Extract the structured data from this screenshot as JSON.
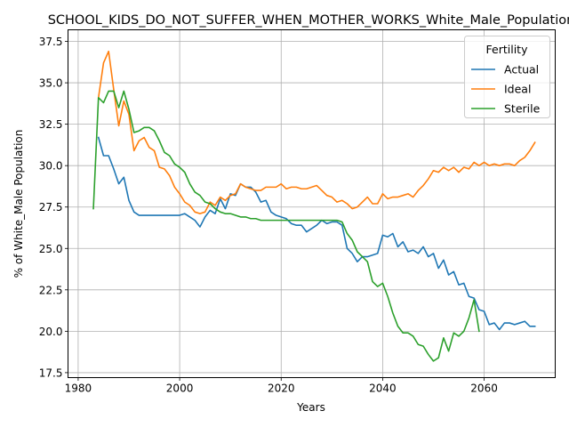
{
  "colors": {
    "Actual": "#1f77b4",
    "Ideal": "#ff7f0e",
    "Sterile": "#2ca02c",
    "grid": "#b0b0b0"
  },
  "chart_data": {
    "type": "line",
    "title": "SCHOOL_KIDS_DO_NOT_SUFFER_WHEN_MOTHER_WORKS_White_Male_Population",
    "xlabel": "Years",
    "ylabel": "% of White_Male Population",
    "xlim": [
      1978,
      2074
    ],
    "ylim": [
      17.2,
      38.2
    ],
    "xticks": [
      1980,
      2000,
      2020,
      2040,
      2060
    ],
    "yticks": [
      17.5,
      20.0,
      22.5,
      25.0,
      27.5,
      30.0,
      32.5,
      35.0,
      37.5
    ],
    "xtick_labels": [
      "1980",
      "2000",
      "2020",
      "2040",
      "2060"
    ],
    "ytick_labels": [
      "17.5",
      "20.0",
      "22.5",
      "25.0",
      "27.5",
      "30.0",
      "32.5",
      "35.0",
      "37.5"
    ],
    "grid": true,
    "legend": {
      "title": "Fertility",
      "position": "top-right"
    },
    "series": [
      {
        "name": "Actual",
        "x": [
          1984,
          1985,
          1986,
          1987,
          1988,
          1989,
          1990,
          1991,
          1992,
          1993,
          1994,
          1995,
          1996,
          1997,
          1998,
          1999,
          2000,
          2001,
          2002,
          2003,
          2004,
          2005,
          2006,
          2007,
          2008,
          2009,
          2010,
          2011,
          2012,
          2013,
          2014,
          2015,
          2016,
          2017,
          2018,
          2019,
          2020,
          2021,
          2022,
          2023,
          2024,
          2025,
          2026,
          2027,
          2028,
          2029,
          2030,
          2031,
          2032,
          2033,
          2034,
          2035,
          2036,
          2037,
          2038,
          2039,
          2040,
          2041,
          2042,
          2043,
          2044,
          2045,
          2046,
          2047,
          2048,
          2049,
          2050,
          2051,
          2052,
          2053,
          2054,
          2055,
          2056,
          2057,
          2058,
          2059,
          2060,
          2061,
          2062,
          2063,
          2064,
          2065,
          2066,
          2067,
          2068,
          2069,
          2070
        ],
        "values": [
          31.7,
          30.6,
          30.6,
          29.8,
          28.9,
          29.3,
          27.9,
          27.2,
          27.0,
          27.0,
          27.0,
          27.0,
          27.0,
          27.0,
          27.0,
          27.0,
          27.0,
          27.1,
          26.9,
          26.7,
          26.3,
          26.9,
          27.3,
          27.1,
          28.0,
          27.4,
          28.3,
          28.2,
          28.9,
          28.7,
          28.7,
          28.4,
          27.8,
          27.9,
          27.2,
          27.0,
          26.9,
          26.8,
          26.5,
          26.4,
          26.4,
          26.0,
          26.2,
          26.4,
          26.7,
          26.5,
          26.6,
          26.6,
          26.4,
          25.0,
          24.7,
          24.2,
          24.5,
          24.5,
          24.6,
          24.7,
          25.8,
          25.7,
          25.9,
          25.1,
          25.4,
          24.8,
          24.9,
          24.7,
          25.1,
          24.5,
          24.7,
          23.8,
          24.3,
          23.4,
          23.6,
          22.8,
          22.9,
          22.1,
          22.0,
          21.3,
          21.2,
          20.4,
          20.5,
          20.1,
          20.5,
          20.5,
          20.4,
          20.5,
          20.6,
          20.3,
          20.3
        ]
      },
      {
        "name": "Ideal",
        "x": [
          1984,
          1985,
          1986,
          1987,
          1988,
          1989,
          1990,
          1991,
          1992,
          1993,
          1994,
          1995,
          1996,
          1997,
          1998,
          1999,
          2000,
          2001,
          2002,
          2003,
          2004,
          2005,
          2006,
          2007,
          2008,
          2009,
          2010,
          2011,
          2012,
          2013,
          2014,
          2015,
          2016,
          2017,
          2018,
          2019,
          2020,
          2021,
          2022,
          2023,
          2024,
          2025,
          2026,
          2027,
          2028,
          2029,
          2030,
          2031,
          2032,
          2033,
          2034,
          2035,
          2036,
          2037,
          2038,
          2039,
          2040,
          2041,
          2042,
          2043,
          2044,
          2045,
          2046,
          2047,
          2048,
          2049,
          2050,
          2051,
          2052,
          2053,
          2054,
          2055,
          2056,
          2057,
          2058,
          2059,
          2060,
          2061,
          2062,
          2063,
          2064,
          2065,
          2066,
          2067,
          2068,
          2069,
          2070
        ],
        "values": [
          34.1,
          36.2,
          36.9,
          34.6,
          32.4,
          33.9,
          33.1,
          30.9,
          31.5,
          31.7,
          31.1,
          30.9,
          29.9,
          29.8,
          29.4,
          28.7,
          28.3,
          27.8,
          27.6,
          27.2,
          27.1,
          27.2,
          27.8,
          27.6,
          28.1,
          27.9,
          28.2,
          28.3,
          28.9,
          28.7,
          28.6,
          28.5,
          28.5,
          28.7,
          28.7,
          28.7,
          28.9,
          28.6,
          28.7,
          28.7,
          28.6,
          28.6,
          28.7,
          28.8,
          28.5,
          28.2,
          28.1,
          27.8,
          27.9,
          27.7,
          27.4,
          27.5,
          27.8,
          28.1,
          27.7,
          27.7,
          28.3,
          28.0,
          28.1,
          28.1,
          28.2,
          28.3,
          28.1,
          28.5,
          28.8,
          29.2,
          29.7,
          29.6,
          29.9,
          29.7,
          29.9,
          29.6,
          29.9,
          29.8,
          30.2,
          30.0,
          30.2,
          30.0,
          30.1,
          30.0,
          30.1,
          30.1,
          30.0,
          30.3,
          30.5,
          30.9,
          31.4
        ]
      },
      {
        "name": "Sterile",
        "x": [
          1983,
          1984,
          1985,
          1986,
          1987,
          1988,
          1989,
          1990,
          1991,
          1992,
          1993,
          1994,
          1995,
          1996,
          1997,
          1998,
          1999,
          2000,
          2001,
          2002,
          2003,
          2004,
          2005,
          2006,
          2007,
          2008,
          2009,
          2010,
          2011,
          2012,
          2013,
          2014,
          2015,
          2016,
          2017,
          2018,
          2019,
          2020,
          2021,
          2022,
          2023,
          2024,
          2025,
          2026,
          2027,
          2028,
          2029,
          2030,
          2031,
          2032,
          2033,
          2034,
          2035,
          2036,
          2037,
          2038,
          2039,
          2040,
          2041,
          2042,
          2043,
          2044,
          2045,
          2046,
          2047,
          2048,
          2049,
          2050,
          2051,
          2052,
          2053,
          2054,
          2055,
          2056,
          2057,
          2058,
          2059
        ],
        "values": [
          27.4,
          34.1,
          33.8,
          34.5,
          34.5,
          33.5,
          34.5,
          33.4,
          32.0,
          32.1,
          32.3,
          32.3,
          32.1,
          31.5,
          30.8,
          30.6,
          30.1,
          29.9,
          29.6,
          28.9,
          28.4,
          28.2,
          27.8,
          27.7,
          27.4,
          27.2,
          27.1,
          27.1,
          27.0,
          26.9,
          26.9,
          26.8,
          26.8,
          26.7,
          26.7,
          26.7,
          26.7,
          26.7,
          26.7,
          26.7,
          26.7,
          26.7,
          26.7,
          26.7,
          26.7,
          26.7,
          26.7,
          26.7,
          26.7,
          26.6,
          25.9,
          25.5,
          24.8,
          24.5,
          24.2,
          23.0,
          22.7,
          22.9,
          22.1,
          21.1,
          20.3,
          19.9,
          19.9,
          19.7,
          19.2,
          19.1,
          18.6,
          18.2,
          18.4,
          19.6,
          18.8,
          19.9,
          19.7,
          20.0,
          20.8,
          21.9,
          20.0
        ]
      }
    ]
  }
}
